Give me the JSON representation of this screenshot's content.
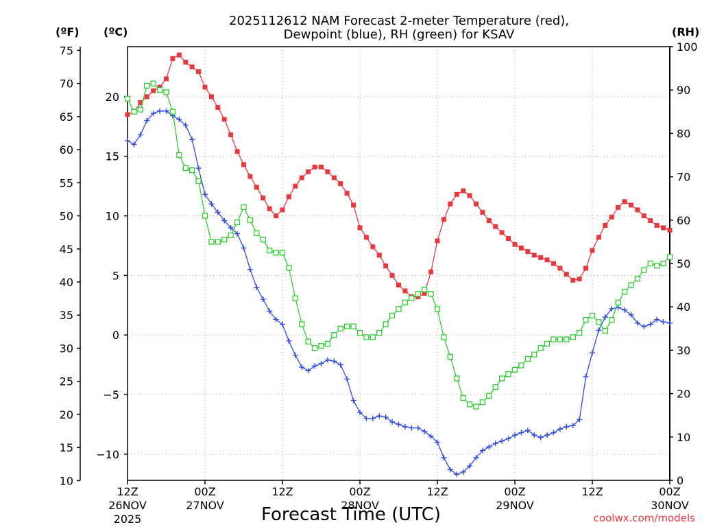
{
  "chart_data": {
    "type": "line",
    "title_line1": "2025112612 NAM Forecast 2-meter Temperature (red),",
    "title_line2": "Dewpoint (blue), RH (green) for KSAV",
    "axis_label_f": "(ºF)",
    "axis_label_c": "(ºC)",
    "axis_label_rh": "(RH)",
    "xlabel": "Forecast Time (UTC)",
    "credit": "coolwx.com/models",
    "xlim": [
      0,
      84
    ],
    "ylim_c": [
      -12.2,
      24.2
    ],
    "ylim_rh": [
      0,
      100
    ],
    "grid": true,
    "f_ticks": [
      "75",
      "70",
      "65",
      "60",
      "55",
      "50",
      "45",
      "40",
      "35",
      "30",
      "25",
      "20",
      "15",
      "10"
    ],
    "f_tick_values": [
      75,
      70,
      65,
      60,
      55,
      50,
      45,
      40,
      35,
      30,
      25,
      20,
      15,
      10
    ],
    "c_ticks": [
      "20",
      "15",
      "10",
      "5",
      "0",
      "−5",
      "−10"
    ],
    "c_tick_values": [
      20,
      15,
      10,
      5,
      0,
      -5,
      -10
    ],
    "rh_ticks": [
      "100",
      "90",
      "80",
      "70",
      "60",
      "50",
      "40",
      "30",
      "20",
      "10",
      "0"
    ],
    "rh_tick_values": [
      100,
      90,
      80,
      70,
      60,
      50,
      40,
      30,
      20,
      10,
      0
    ],
    "x_ticks": [
      {
        "hour": 0,
        "line1": "12Z",
        "line2": "26NOV",
        "line3": "2025"
      },
      {
        "hour": 12,
        "line1": "00Z",
        "line2": "27NOV",
        "line3": ""
      },
      {
        "hour": 24,
        "line1": "12Z",
        "line2": "",
        "line3": ""
      },
      {
        "hour": 36,
        "line1": "00Z",
        "line2": "28NOV",
        "line3": ""
      },
      {
        "hour": 48,
        "line1": "12Z",
        "line2": "",
        "line3": ""
      },
      {
        "hour": 60,
        "line1": "00Z",
        "line2": "29NOV",
        "line3": ""
      },
      {
        "hour": 72,
        "line1": "12Z",
        "line2": "",
        "line3": ""
      },
      {
        "hour": 84,
        "line1": "00Z",
        "line2": "30NOV",
        "line3": ""
      }
    ],
    "series": [
      {
        "name": "2-meter Temperature",
        "unit": "C",
        "color": "#e8383d",
        "marker": "filled-square",
        "x": [
          0,
          1,
          2,
          3,
          4,
          5,
          6,
          7,
          8,
          9,
          10,
          11,
          12,
          13,
          14,
          15,
          16,
          17,
          18,
          19,
          20,
          21,
          22,
          23,
          24,
          25,
          26,
          27,
          28,
          29,
          30,
          31,
          32,
          33,
          34,
          35,
          36,
          37,
          38,
          39,
          40,
          41,
          42,
          43,
          44,
          45,
          46,
          47,
          48,
          49,
          50,
          51,
          52,
          53,
          54,
          55,
          56,
          57,
          58,
          59,
          60,
          61,
          62,
          63,
          64,
          65,
          66,
          67,
          68,
          69,
          70,
          71,
          72,
          73,
          74,
          75,
          76,
          77,
          78,
          79,
          80,
          81,
          82,
          83,
          84
        ],
        "values": [
          18.5,
          18.7,
          19.5,
          20.0,
          20.5,
          20.8,
          21.5,
          23.2,
          23.5,
          22.9,
          22.5,
          22.1,
          20.8,
          20.0,
          19.1,
          18.1,
          16.8,
          15.4,
          14.3,
          13.3,
          12.4,
          11.5,
          10.6,
          10.0,
          10.5,
          11.6,
          12.5,
          13.2,
          13.7,
          14.1,
          14.1,
          13.7,
          13.2,
          12.7,
          11.9,
          10.9,
          9.0,
          8.2,
          7.4,
          6.7,
          5.8,
          5.0,
          4.2,
          3.7,
          3.2,
          3.2,
          3.5,
          5.3,
          7.9,
          9.7,
          11.0,
          11.8,
          12.1,
          11.7,
          11.0,
          10.3,
          9.6,
          9.1,
          8.6,
          8.1,
          7.6,
          7.3,
          7.0,
          6.7,
          6.5,
          6.3,
          6.0,
          5.6,
          5.1,
          4.6,
          4.7,
          5.6,
          7.1,
          8.2,
          9.2,
          9.9,
          10.7,
          11.2,
          10.9,
          10.5,
          10.0,
          9.6,
          9.2,
          9.0,
          8.8
        ]
      },
      {
        "name": "Dewpoint",
        "unit": "C",
        "color": "#2e48e6",
        "marker": "plus",
        "x": [
          0,
          1,
          2,
          3,
          4,
          5,
          6,
          7,
          8,
          9,
          10,
          11,
          12,
          13,
          14,
          15,
          16,
          17,
          18,
          19,
          20,
          21,
          22,
          23,
          24,
          25,
          26,
          27,
          28,
          29,
          30,
          31,
          32,
          33,
          34,
          35,
          36,
          37,
          38,
          39,
          40,
          41,
          42,
          43,
          44,
          45,
          46,
          47,
          48,
          49,
          50,
          51,
          52,
          53,
          54,
          55,
          56,
          57,
          58,
          59,
          60,
          61,
          62,
          63,
          64,
          65,
          66,
          67,
          68,
          69,
          70,
          71,
          72,
          73,
          74,
          75,
          76,
          77,
          78,
          79,
          80,
          81,
          82,
          83,
          84
        ],
        "values": [
          16.3,
          16.0,
          16.8,
          18.0,
          18.6,
          18.8,
          18.8,
          18.4,
          18.1,
          17.6,
          16.4,
          14.0,
          11.8,
          11.0,
          10.3,
          9.6,
          9.0,
          8.5,
          7.3,
          5.5,
          4.0,
          3.0,
          2.0,
          1.3,
          0.9,
          -0.5,
          -1.7,
          -2.7,
          -3.0,
          -2.6,
          -2.4,
          -2.1,
          -2.2,
          -2.5,
          -3.7,
          -5.5,
          -6.5,
          -7.0,
          -7.0,
          -6.8,
          -6.9,
          -7.3,
          -7.5,
          -7.7,
          -7.8,
          -7.8,
          -8.1,
          -8.5,
          -9.0,
          -10.3,
          -11.3,
          -11.7,
          -11.5,
          -11.0,
          -10.3,
          -9.7,
          -9.4,
          -9.1,
          -8.9,
          -8.7,
          -8.4,
          -8.2,
          -8.0,
          -8.4,
          -8.6,
          -8.4,
          -8.2,
          -7.9,
          -7.7,
          -7.6,
          -7.1,
          -3.5,
          -1.5,
          0.4,
          1.5,
          2.2,
          2.3,
          2.1,
          1.7,
          1.0,
          0.7,
          0.9,
          1.3,
          1.1,
          1.0
        ]
      },
      {
        "name": "RH",
        "unit": "%",
        "color": "#2ecc2e",
        "marker": "open-square",
        "x": [
          0,
          1,
          2,
          3,
          4,
          5,
          6,
          7,
          8,
          9,
          10,
          11,
          12,
          13,
          14,
          15,
          16,
          17,
          18,
          19,
          20,
          21,
          22,
          23,
          24,
          25,
          26,
          27,
          28,
          29,
          30,
          31,
          32,
          33,
          34,
          35,
          36,
          37,
          38,
          39,
          40,
          41,
          42,
          43,
          44,
          45,
          46,
          47,
          48,
          49,
          50,
          51,
          52,
          53,
          54,
          55,
          56,
          57,
          58,
          59,
          60,
          61,
          62,
          63,
          64,
          65,
          66,
          67,
          68,
          69,
          70,
          71,
          72,
          73,
          74,
          75,
          76,
          77,
          78,
          79,
          80,
          81,
          82,
          83,
          84
        ],
        "values": [
          88,
          85,
          85.5,
          91,
          91.5,
          90,
          89.5,
          85,
          75,
          72,
          71.5,
          69,
          61,
          55,
          55,
          55.5,
          56.5,
          59.5,
          63,
          60,
          57,
          55.5,
          53,
          52.5,
          52.5,
          49,
          42,
          36,
          32,
          30.5,
          31,
          31.5,
          33.5,
          35,
          35.5,
          35.5,
          34,
          33,
          33,
          34,
          36,
          38,
          39.5,
          41,
          42,
          43,
          44,
          43,
          39.5,
          33,
          28.5,
          23.5,
          19,
          17.5,
          17,
          18,
          19.5,
          21.5,
          23.5,
          24.5,
          25.5,
          26.5,
          28,
          29,
          30.5,
          31.5,
          32.5,
          32.5,
          32.5,
          33,
          34,
          37,
          38,
          36.5,
          34.5,
          37,
          41,
          43.5,
          45,
          46.5,
          48.5,
          50,
          49.5,
          50,
          51.5
        ]
      }
    ]
  }
}
